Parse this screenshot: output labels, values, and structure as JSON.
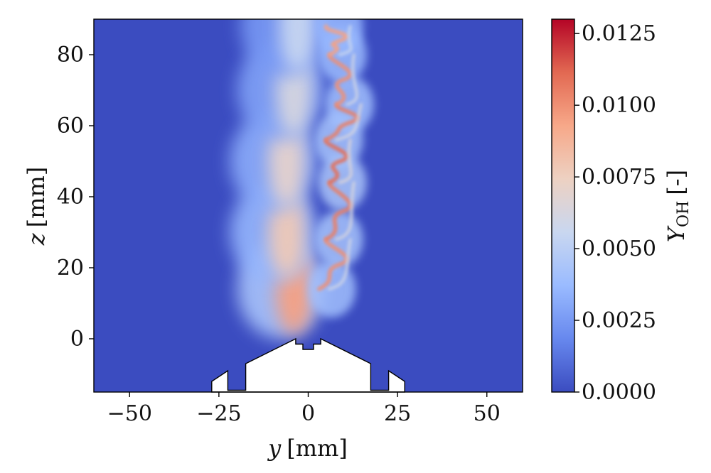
{
  "chart_data": {
    "type": "heatmap",
    "title": "",
    "xlabel": {
      "symbol": "y",
      "unit": "[mm]"
    },
    "ylabel": {
      "symbol": "z",
      "unit": "[mm]"
    },
    "xlim": [
      -60,
      60
    ],
    "ylim": [
      -15,
      90
    ],
    "xticks": [
      -50,
      -25,
      0,
      25,
      50
    ],
    "xtick_labels": [
      "−50",
      "−25",
      "0",
      "25",
      "50"
    ],
    "yticks": [
      0,
      20,
      40,
      60,
      80
    ],
    "ytick_labels": [
      "0",
      "20",
      "40",
      "60",
      "80"
    ],
    "grid": false,
    "colormap": "coolwarm",
    "colorbar": {
      "label": {
        "symbol": "Y",
        "subscript": "OH",
        "unit": "[-]"
      },
      "range": [
        0.0,
        0.013
      ],
      "ticks": [
        0.0,
        0.0025,
        0.005,
        0.0075,
        0.01,
        0.0125
      ],
      "tick_labels": [
        "0.0000",
        "0.0025",
        "0.0050",
        "0.0075",
        "0.0100",
        "0.0125"
      ],
      "colors": [
        "#3b4cc0",
        "#6788ee",
        "#9abbff",
        "#c9d7f0",
        "#edd1c2",
        "#f7a889",
        "#e26952",
        "#b40426"
      ]
    },
    "background_value": 0.0,
    "left_half_flame": [
      {
        "z": 14,
        "y_center": -4,
        "peak": 0.0095
      },
      {
        "z": 30,
        "y_center": -6,
        "peak": 0.0078
      },
      {
        "z": 50,
        "y_center": -6,
        "peak": 0.007
      },
      {
        "z": 70,
        "y_center": -4,
        "peak": 0.0062
      },
      {
        "z": 88,
        "y_center": -3,
        "peak": 0.0055
      }
    ],
    "right_half_filaments": [
      {
        "z": 14,
        "y_center": 3,
        "peak": 0.01
      },
      {
        "z": 28,
        "y_center": 5,
        "peak": 0.0105
      },
      {
        "z": 44,
        "y_center": 6,
        "peak": 0.011
      },
      {
        "z": 56,
        "y_center": 5,
        "peak": 0.0105
      },
      {
        "z": 66,
        "y_center": 8,
        "peak": 0.01
      },
      {
        "z": 80,
        "y_center": 6,
        "peak": 0.0095
      },
      {
        "z": 88,
        "y_center": 5,
        "peak": 0.009
      }
    ],
    "burner_outline": [
      [
        -27,
        -15
      ],
      [
        -27,
        -12
      ],
      [
        -22.5,
        -9
      ],
      [
        -22.5,
        -14.5
      ],
      [
        -17.5,
        -14.5
      ],
      [
        -17.5,
        -7
      ],
      [
        -3.5,
        0
      ],
      [
        -3.5,
        -1.5
      ],
      [
        -1.5,
        -1.5
      ],
      [
        -1.5,
        -3
      ],
      [
        1.5,
        -3
      ],
      [
        1.5,
        -1.5
      ],
      [
        3.5,
        -1.5
      ],
      [
        3.5,
        0
      ],
      [
        17.5,
        -7
      ],
      [
        17.5,
        -14.5
      ],
      [
        22.5,
        -14.5
      ],
      [
        22.5,
        -9
      ],
      [
        27,
        -12
      ],
      [
        27,
        -15
      ]
    ]
  }
}
